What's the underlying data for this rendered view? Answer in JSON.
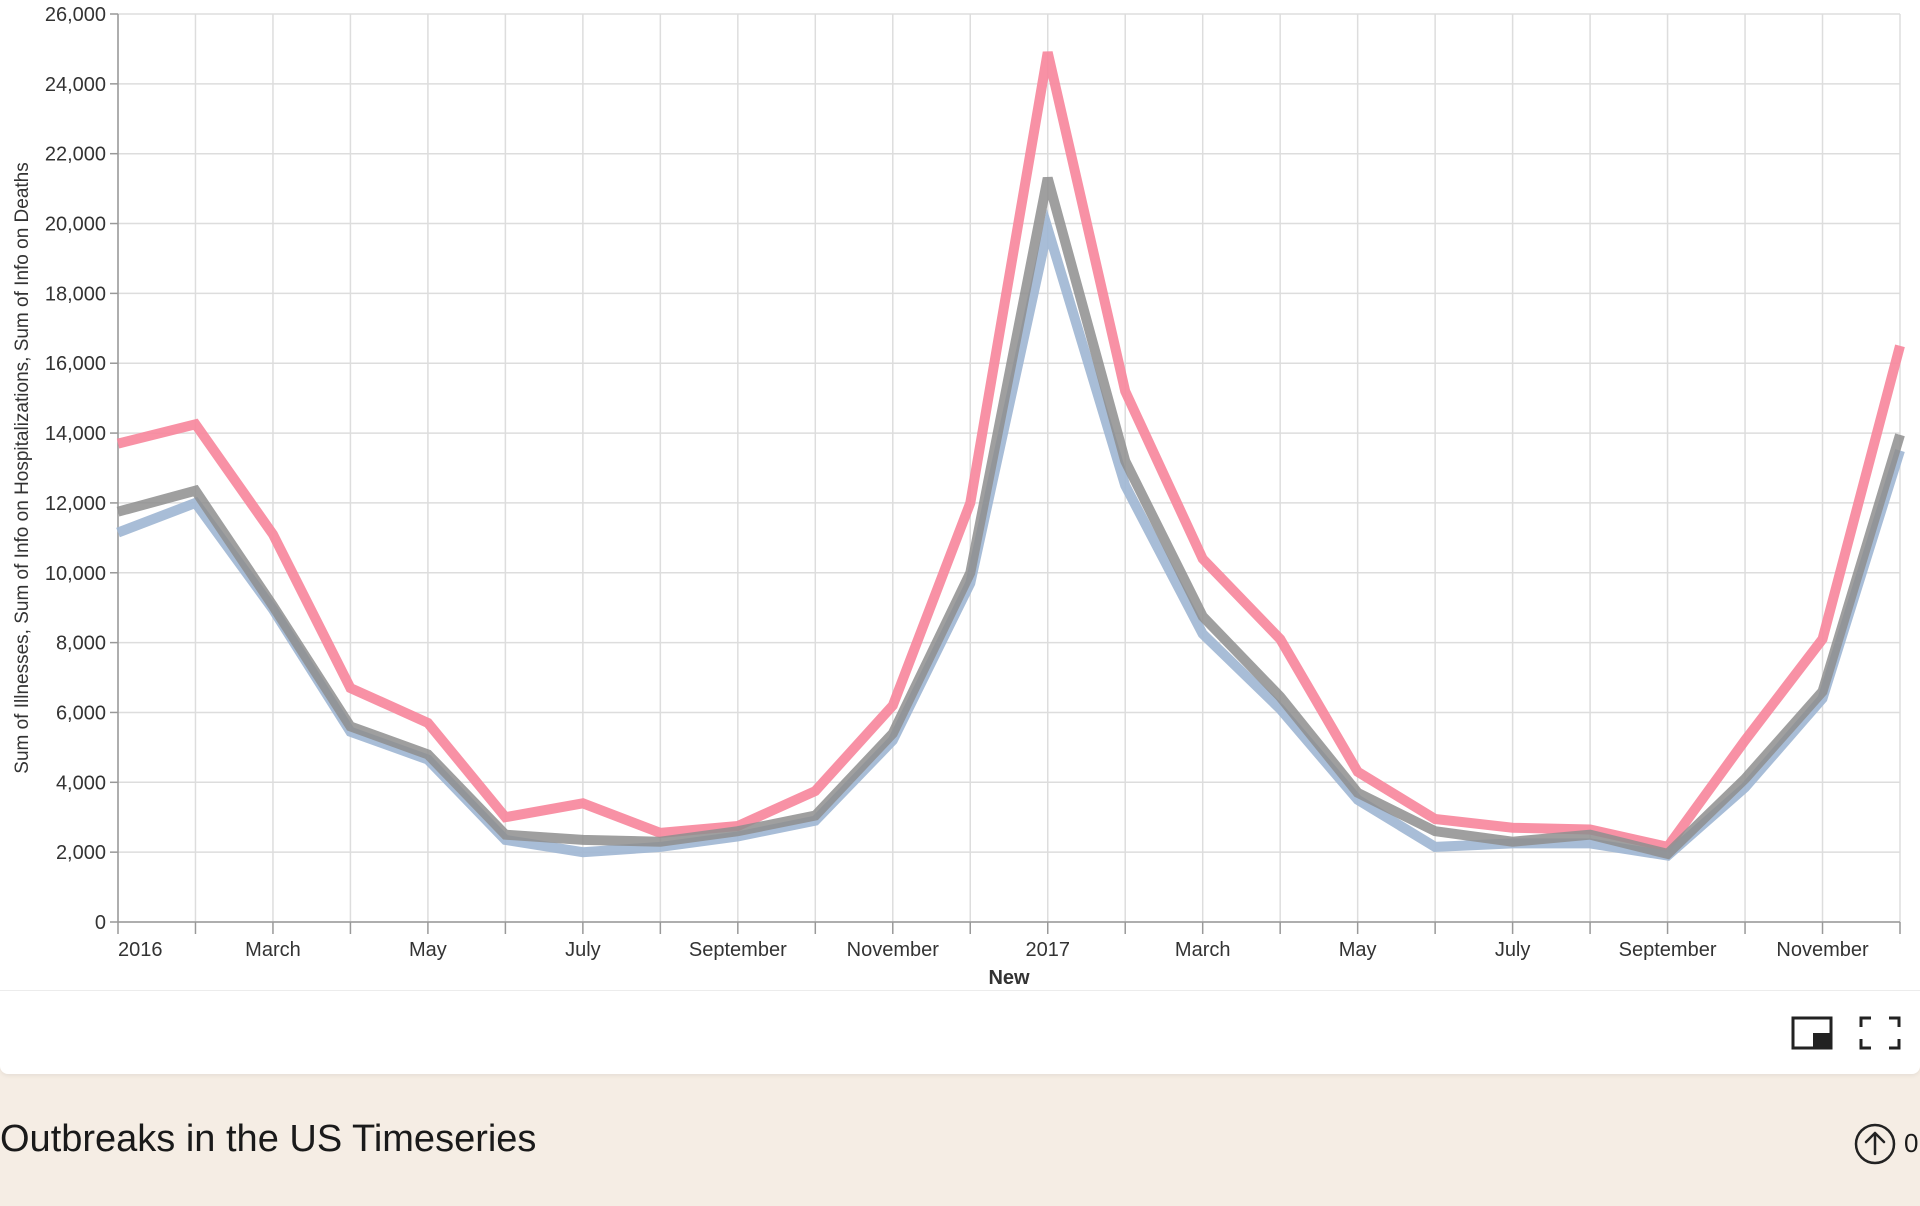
{
  "chart_data": {
    "type": "line",
    "xlabel": "New",
    "ylabel": "Sum of Illnesses, Sum of Info on Hospitalizations, Sum of Info on Deaths",
    "ylim": [
      0,
      26000
    ],
    "yticks": [
      0,
      2000,
      4000,
      6000,
      8000,
      10000,
      12000,
      14000,
      16000,
      18000,
      20000,
      22000,
      24000,
      26000
    ],
    "ytick_labels": [
      "0",
      "2,000",
      "4,000",
      "6,000",
      "8,000",
      "10,000",
      "12,000",
      "14,000",
      "16,000",
      "18,000",
      "20,000",
      "22,000",
      "24,000",
      "26,000"
    ],
    "x": [
      "2016-01",
      "2016-02",
      "2016-03",
      "2016-04",
      "2016-05",
      "2016-06",
      "2016-07",
      "2016-08",
      "2016-09",
      "2016-10",
      "2016-11",
      "2016-12",
      "2017-01",
      "2017-02",
      "2017-03",
      "2017-04",
      "2017-05",
      "2017-06",
      "2017-07",
      "2017-08",
      "2017-09",
      "2017-10",
      "2017-11",
      "2017-12"
    ],
    "xtick_labels": [
      "2016",
      "",
      "March",
      "",
      "May",
      "",
      "July",
      "",
      "September",
      "",
      "November",
      "",
      "2017",
      "",
      "March",
      "",
      "May",
      "",
      "July",
      "",
      "September",
      "",
      "November",
      ""
    ],
    "grid": true,
    "series": [
      {
        "color": "#f7859b",
        "values": [
          13700,
          14250,
          11100,
          6700,
          5700,
          3000,
          3400,
          2550,
          2750,
          3750,
          6200,
          12000,
          24900,
          15200,
          10400,
          8100,
          4300,
          2950,
          2700,
          2650,
          2150,
          5200,
          8100,
          16500
        ]
      },
      {
        "color": "#9fb6d3",
        "values": [
          11150,
          12000,
          8950,
          5450,
          4650,
          2350,
          2000,
          2150,
          2450,
          2900,
          5200,
          9700,
          19850,
          12500,
          8250,
          6100,
          3500,
          2150,
          2250,
          2250,
          1900,
          3850,
          6400,
          13500
        ]
      },
      {
        "color": "#8e8e8e",
        "values": [
          11750,
          12350,
          9050,
          5600,
          4800,
          2500,
          2350,
          2300,
          2600,
          3050,
          5400,
          10000,
          21300,
          13200,
          8750,
          6450,
          3700,
          2600,
          2300,
          2500,
          1950,
          4100,
          6600,
          13950
        ]
      }
    ]
  },
  "toolbar": {
    "pip_icon": "picture-in-picture-icon",
    "fullscreen_icon": "fullscreen-icon"
  },
  "footer": {
    "title": "Outbreaks in the US Timeseries",
    "vote_icon": "arrow-up-circle-icon",
    "vote_count": "0"
  }
}
